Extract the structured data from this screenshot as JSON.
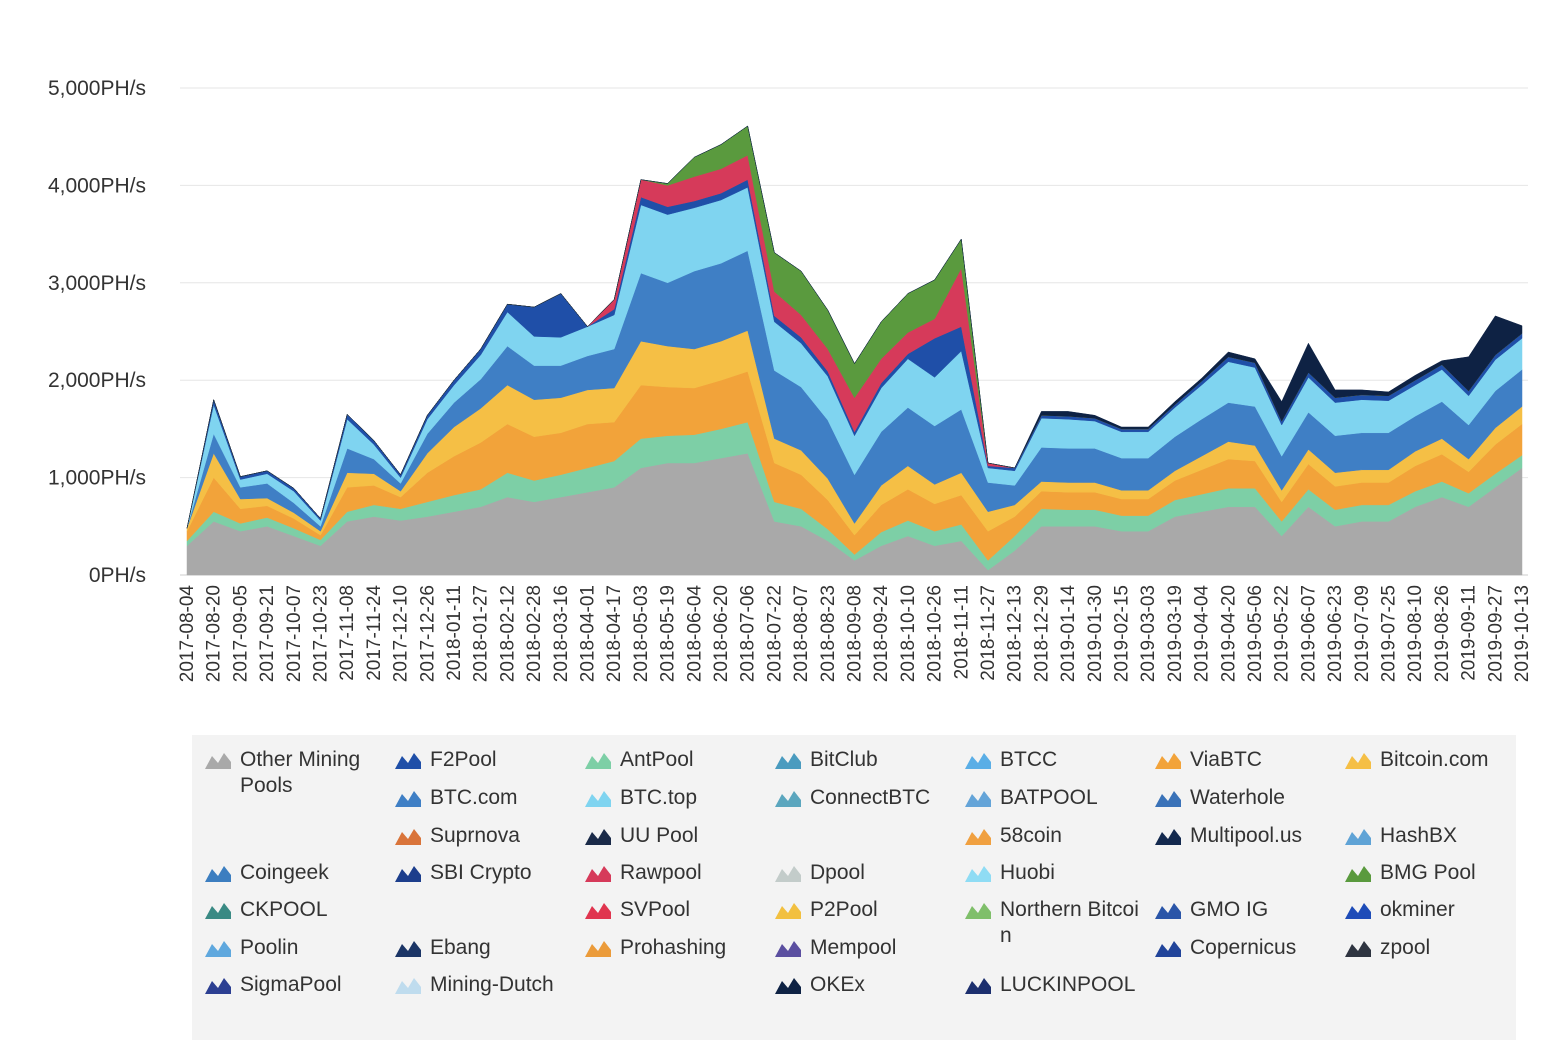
{
  "chart_data": {
    "type": "area",
    "stacked": true,
    "title": "",
    "xlabel": "",
    "ylabel": "",
    "unit": "PH/s",
    "ylim": [
      0,
      5000
    ],
    "grid": true,
    "legend_position": "bottom",
    "y_ticks": [
      "0PH/s",
      "1,000PH/s",
      "2,000PH/s",
      "3,000PH/s",
      "4,000PH/s",
      "5,000PH/s"
    ],
    "x_ticks": [
      "2017-08-04",
      "2017-08-20",
      "2017-09-05",
      "2017-09-21",
      "2017-10-07",
      "2017-10-23",
      "2017-11-08",
      "2017-11-24",
      "2017-12-10",
      "2017-12-26",
      "2018-01-11",
      "2018-01-27",
      "2018-02-12",
      "2018-02-28",
      "2018-03-16",
      "2018-04-01",
      "2018-04-17",
      "2018-05-03",
      "2018-05-19",
      "2018-06-04",
      "2018-06-20",
      "2018-07-06",
      "2018-07-22",
      "2018-08-07",
      "2018-08-23",
      "2018-09-08",
      "2018-09-24",
      "2018-10-10",
      "2018-10-26",
      "2018-11-11",
      "2018-11-27",
      "2018-12-13",
      "2018-12-29",
      "2019-01-14",
      "2019-01-30",
      "2019-02-15",
      "2019-03-03",
      "2019-03-19",
      "2019-04-04",
      "2019-04-20",
      "2019-05-06",
      "2019-05-22",
      "2019-06-07",
      "2019-06-23",
      "2019-07-09",
      "2019-07-25",
      "2019-08-10",
      "2019-08-26",
      "2019-09-11",
      "2019-09-27",
      "2019-10-13"
    ],
    "x": [
      "2017-08-04",
      "2017-08-20",
      "2017-09-05",
      "2017-09-21",
      "2017-10-07",
      "2017-10-23",
      "2017-11-08",
      "2017-11-24",
      "2017-12-10",
      "2017-12-26",
      "2018-01-11",
      "2018-01-27",
      "2018-02-12",
      "2018-02-28",
      "2018-03-16",
      "2018-04-01",
      "2018-04-17",
      "2018-05-03",
      "2018-05-19",
      "2018-06-04",
      "2018-06-20",
      "2018-07-06",
      "2018-07-22",
      "2018-08-07",
      "2018-08-23",
      "2018-09-08",
      "2018-09-24",
      "2018-10-10",
      "2018-10-26",
      "2018-11-11",
      "2018-11-27",
      "2018-12-13",
      "2018-12-29",
      "2019-01-14",
      "2019-01-30",
      "2019-02-15",
      "2019-03-03",
      "2019-03-19",
      "2019-04-04",
      "2019-04-20",
      "2019-05-06",
      "2019-05-22",
      "2019-06-07",
      "2019-06-23",
      "2019-07-09",
      "2019-07-25",
      "2019-08-10",
      "2019-08-26",
      "2019-09-11",
      "2019-09-27",
      "2019-10-13"
    ],
    "series": [
      {
        "name": "Other Mining Pools",
        "color": "#a9a9a9",
        "values": [
          300,
          550,
          450,
          500,
          400,
          300,
          550,
          600,
          560,
          600,
          650,
          700,
          800,
          750,
          800,
          850,
          900,
          1100,
          1150,
          1150,
          1200,
          1250,
          550,
          500,
          350,
          150,
          300,
          400,
          300,
          350,
          50,
          250,
          500,
          500,
          500,
          450,
          450,
          600,
          650,
          700,
          700,
          400,
          700,
          500,
          550,
          550,
          700,
          800,
          700,
          900,
          1100
        ]
      },
      {
        "name": "AntPool",
        "color": "#7dcfa6",
        "values": [
          50,
          100,
          80,
          90,
          80,
          60,
          100,
          120,
          120,
          150,
          170,
          180,
          250,
          220,
          230,
          250,
          270,
          300,
          280,
          290,
          300,
          320,
          200,
          180,
          120,
          60,
          140,
          160,
          150,
          170,
          100,
          150,
          180,
          170,
          170,
          160,
          160,
          170,
          180,
          190,
          190,
          150,
          180,
          170,
          170,
          170,
          160,
          160,
          140,
          140,
          130
        ]
      },
      {
        "name": "ViaBTC",
        "color": "#f2a33a",
        "values": [
          100,
          350,
          150,
          120,
          100,
          50,
          250,
          200,
          120,
          300,
          400,
          480,
          500,
          450,
          430,
          450,
          400,
          550,
          500,
          480,
          500,
          520,
          400,
          350,
          300,
          200,
          280,
          320,
          280,
          300,
          300,
          200,
          180,
          180,
          180,
          170,
          170,
          200,
          250,
          300,
          280,
          200,
          260,
          240,
          230,
          230,
          260,
          280,
          220,
          300,
          320
        ]
      },
      {
        "name": "Bitcoin.com",
        "color": "#f5bf45",
        "values": [
          30,
          250,
          100,
          80,
          60,
          40,
          150,
          120,
          60,
          200,
          300,
          350,
          400,
          380,
          360,
          350,
          350,
          450,
          420,
          400,
          400,
          420,
          250,
          250,
          220,
          120,
          200,
          240,
          200,
          230,
          200,
          120,
          100,
          100,
          100,
          90,
          90,
          100,
          140,
          180,
          160,
          120,
          150,
          140,
          130,
          130,
          150,
          160,
          130,
          170,
          180
        ]
      },
      {
        "name": "BTC.com",
        "color": "#3f7fc5",
        "values": [
          0,
          200,
          120,
          150,
          100,
          50,
          250,
          150,
          80,
          200,
          250,
          300,
          400,
          350,
          330,
          350,
          400,
          700,
          650,
          800,
          800,
          820,
          700,
          650,
          600,
          500,
          550,
          600,
          600,
          650,
          300,
          200,
          350,
          350,
          350,
          330,
          330,
          350,
          380,
          400,
          400,
          350,
          380,
          380,
          380,
          380,
          360,
          380,
          350,
          380,
          380
        ]
      },
      {
        "name": "BTC.top",
        "color": "#7fd4f0",
        "values": [
          0,
          300,
          80,
          100,
          120,
          60,
          300,
          150,
          60,
          150,
          180,
          250,
          350,
          300,
          290,
          300,
          350,
          700,
          700,
          650,
          650,
          650,
          500,
          450,
          450,
          400,
          450,
          500,
          500,
          600,
          150,
          150,
          300,
          300,
          280,
          270,
          270,
          300,
          350,
          420,
          400,
          320,
          360,
          340,
          340,
          330,
          320,
          330,
          300,
          320,
          320
        ]
      },
      {
        "name": "F2Pool",
        "color": "#1f4fa8",
        "values": [
          0,
          50,
          30,
          30,
          30,
          20,
          50,
          40,
          30,
          40,
          50,
          60,
          80,
          300,
          450,
          0,
          60,
          80,
          80,
          70,
          70,
          80,
          60,
          60,
          50,
          40,
          50,
          50,
          400,
          250,
          20,
          30,
          30,
          30,
          30,
          30,
          30,
          30,
          40,
          50,
          50,
          40,
          50,
          50,
          50,
          50,
          50,
          50,
          50,
          50,
          50
        ]
      },
      {
        "name": "Rawpool",
        "color": "#d63a5a",
        "values": [
          0,
          0,
          0,
          0,
          0,
          0,
          0,
          0,
          0,
          0,
          0,
          0,
          0,
          0,
          0,
          0,
          100,
          180,
          220,
          250,
          250,
          250,
          250,
          230,
          230,
          350,
          250,
          220,
          200,
          600,
          30,
          0,
          0,
          0,
          0,
          0,
          0,
          0,
          0,
          0,
          0,
          0,
          0,
          0,
          0,
          0,
          0,
          0,
          0,
          0,
          0
        ]
      },
      {
        "name": "BMG Pool",
        "color": "#5a9a3e",
        "values": [
          0,
          0,
          0,
          0,
          0,
          0,
          0,
          0,
          0,
          0,
          0,
          0,
          0,
          0,
          0,
          0,
          0,
          0,
          20,
          200,
          250,
          300,
          400,
          450,
          400,
          350,
          380,
          400,
          400,
          300,
          0,
          0,
          0,
          0,
          0,
          0,
          0,
          0,
          0,
          0,
          0,
          0,
          0,
          0,
          0,
          0,
          0,
          0,
          0,
          0,
          0
        ]
      },
      {
        "name": "OKEx",
        "color": "#0e2244",
        "values": [
          0,
          0,
          0,
          0,
          0,
          0,
          0,
          0,
          0,
          0,
          0,
          0,
          0,
          0,
          0,
          0,
          0,
          0,
          0,
          0,
          0,
          0,
          0,
          0,
          0,
          0,
          0,
          0,
          0,
          0,
          0,
          0,
          40,
          50,
          30,
          20,
          20,
          30,
          30,
          50,
          40,
          200,
          300,
          80,
          50,
          40,
          50,
          40,
          350,
          400,
          80
        ]
      }
    ]
  },
  "legend": {
    "items": [
      {
        "label": "Other Mining Pools",
        "color": "#a9a9a9"
      },
      {
        "label": "F2Pool",
        "color": "#1f4fa8"
      },
      {
        "label": "AntPool",
        "color": "#7dcfa6"
      },
      {
        "label": "BitClub",
        "color": "#4a9bbf"
      },
      {
        "label": "BTCC",
        "color": "#5aaee6"
      },
      {
        "label": "ViaBTC",
        "color": "#f2a33a"
      },
      {
        "label": "Bitcoin.com",
        "color": "#f5bf45"
      },
      {
        "label": "BTC.com",
        "color": "#3f7fc5"
      },
      {
        "label": "BTC.top",
        "color": "#7fd4f0"
      },
      {
        "label": "ConnectBTC",
        "color": "#5ba6be"
      },
      {
        "label": "BATPOOL",
        "color": "#64a4d8"
      },
      {
        "label": "Waterhole",
        "color": "#3a72b8"
      },
      {
        "label": "Suprnova",
        "color": "#d9743a"
      },
      {
        "label": "UU Pool",
        "color": "#1a2a48"
      },
      {
        "label": "58coin",
        "color": "#f0a040"
      },
      {
        "label": "Multipool.us",
        "color": "#13294e"
      },
      {
        "label": "HashBX",
        "color": "#5fa3d6"
      },
      {
        "label": "Coingeek",
        "color": "#3c7ec0"
      },
      {
        "label": "SBI Crypto",
        "color": "#1c3e8c"
      },
      {
        "label": "Rawpool",
        "color": "#d63a5a"
      },
      {
        "label": "Dpool",
        "color": "#c3ccca"
      },
      {
        "label": "Huobi",
        "color": "#8fdcf4"
      },
      {
        "label": "BMG Pool",
        "color": "#5a9a3e"
      },
      {
        "label": "CKPOOL",
        "color": "#3a8a84"
      },
      {
        "label": "SVPool",
        "color": "#e0354f"
      },
      {
        "label": "P2Pool",
        "color": "#f2c040"
      },
      {
        "label": "Northern Bitcoin",
        "color": "#7fbf6a"
      },
      {
        "label": "GMO IG",
        "color": "#2a55a8"
      },
      {
        "label": "okminer",
        "color": "#1e4cb8"
      },
      {
        "label": "Poolin",
        "color": "#5fa8de"
      },
      {
        "label": "Ebang",
        "color": "#1b3566"
      },
      {
        "label": "Prohashing",
        "color": "#eb9b3a"
      },
      {
        "label": "Mempool",
        "color": "#5b4fa0"
      },
      {
        "label": "Copernicus",
        "color": "#21449a"
      },
      {
        "label": "zpool",
        "color": "#2e3440"
      },
      {
        "label": "SigmaPool",
        "color": "#2c3f92"
      },
      {
        "label": "Mining-Dutch",
        "color": "#bfdcee"
      },
      {
        "label": "OKEx",
        "color": "#0e2244"
      },
      {
        "label": "LUCKINPOOL",
        "color": "#1c2f6e"
      }
    ]
  }
}
